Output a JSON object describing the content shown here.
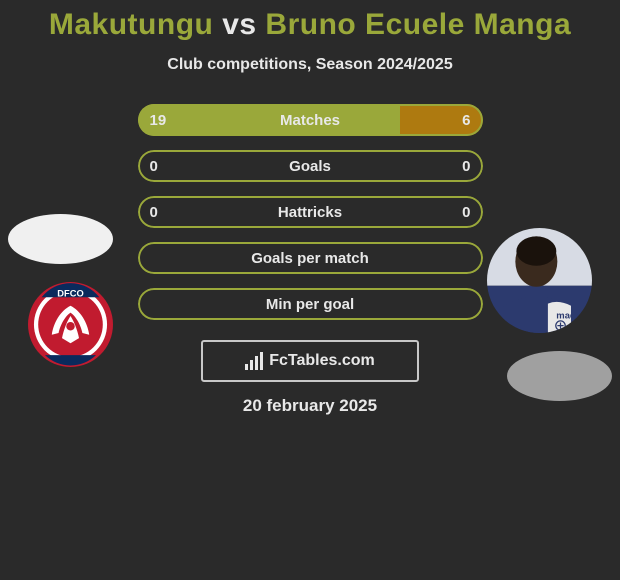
{
  "title": {
    "parts": [
      {
        "text": "Makutungu",
        "color": "#9aa83a"
      },
      {
        "text": " vs ",
        "color": "#e8e8e8"
      },
      {
        "text": "Bruno Ecuele Manga",
        "color": "#9aa83a"
      }
    ]
  },
  "subtitle": "Club competitions, Season 2024/2025",
  "colors": {
    "left_fill": "#9aa83a",
    "right_fill": "#ae7a10",
    "border": "#9aa83a",
    "background": "#2a2a2a",
    "text": "#e8e8e8"
  },
  "stats": [
    {
      "label": "Matches",
      "left_val": "19",
      "right_val": "6",
      "left_pct": 76,
      "right_pct": 24,
      "show_vals": true
    },
    {
      "label": "Goals",
      "left_val": "0",
      "right_val": "0",
      "left_pct": 0,
      "right_pct": 0,
      "show_vals": true
    },
    {
      "label": "Hattricks",
      "left_val": "0",
      "right_val": "0",
      "left_pct": 0,
      "right_pct": 0,
      "show_vals": true
    },
    {
      "label": "Goals per match",
      "left_val": "",
      "right_val": "",
      "left_pct": 0,
      "right_pct": 0,
      "show_vals": false
    },
    {
      "label": "Min per goal",
      "left_val": "",
      "right_val": "",
      "left_pct": 0,
      "right_pct": 0,
      "show_vals": false
    }
  ],
  "brand": "FcTables.com",
  "date": "20 february 2025",
  "left_logo": {
    "bg": "#c11b2f",
    "inner_bg": "#ffffff",
    "text_top": "DFCO"
  },
  "right_photo": {
    "top_bg": "#2c3a6e",
    "bottom_bg": "#d7dbe4",
    "skin": "#3a2a1e",
    "brand_text": "macr"
  }
}
